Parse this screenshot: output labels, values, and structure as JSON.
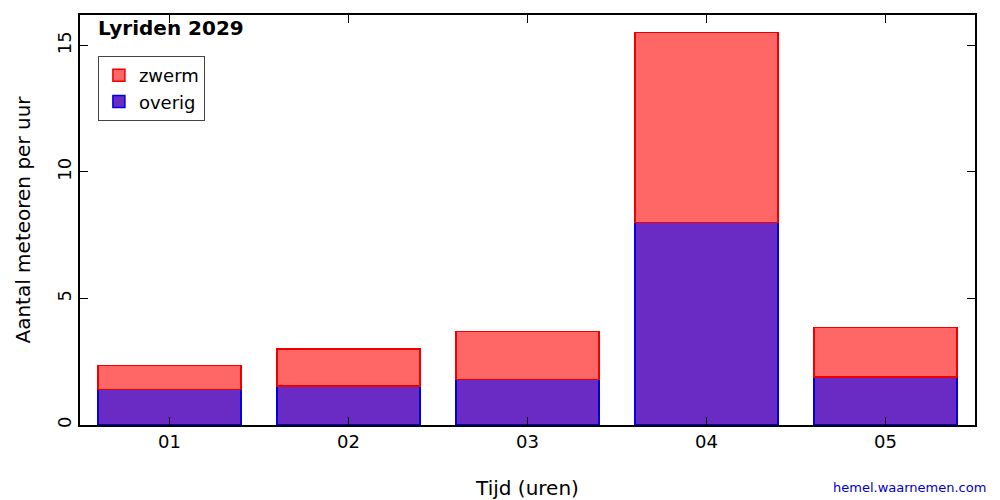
{
  "chart_data": {
    "type": "bar",
    "title": "Lyriden 2029",
    "xlabel": "Tijd (uren)",
    "ylabel": "Aantal meteoren per uur",
    "categories": [
      "01",
      "02",
      "03",
      "04",
      "05"
    ],
    "series": [
      {
        "name": "overig",
        "color": "#6a2bc4",
        "values": [
          1.4,
          1.55,
          1.8,
          8.0,
          1.9
        ]
      },
      {
        "name": "zwerm",
        "color": "#ff6666",
        "values": [
          0.95,
          1.45,
          1.9,
          7.5,
          1.95
        ]
      }
    ],
    "stacked": true,
    "ylim": [
      0,
      16.2
    ],
    "yticks": [
      0,
      5,
      10,
      15
    ],
    "grid": false,
    "legend": "upper left",
    "annotations": [
      {
        "text": "hemel.waarnemen.com"
      }
    ]
  }
}
